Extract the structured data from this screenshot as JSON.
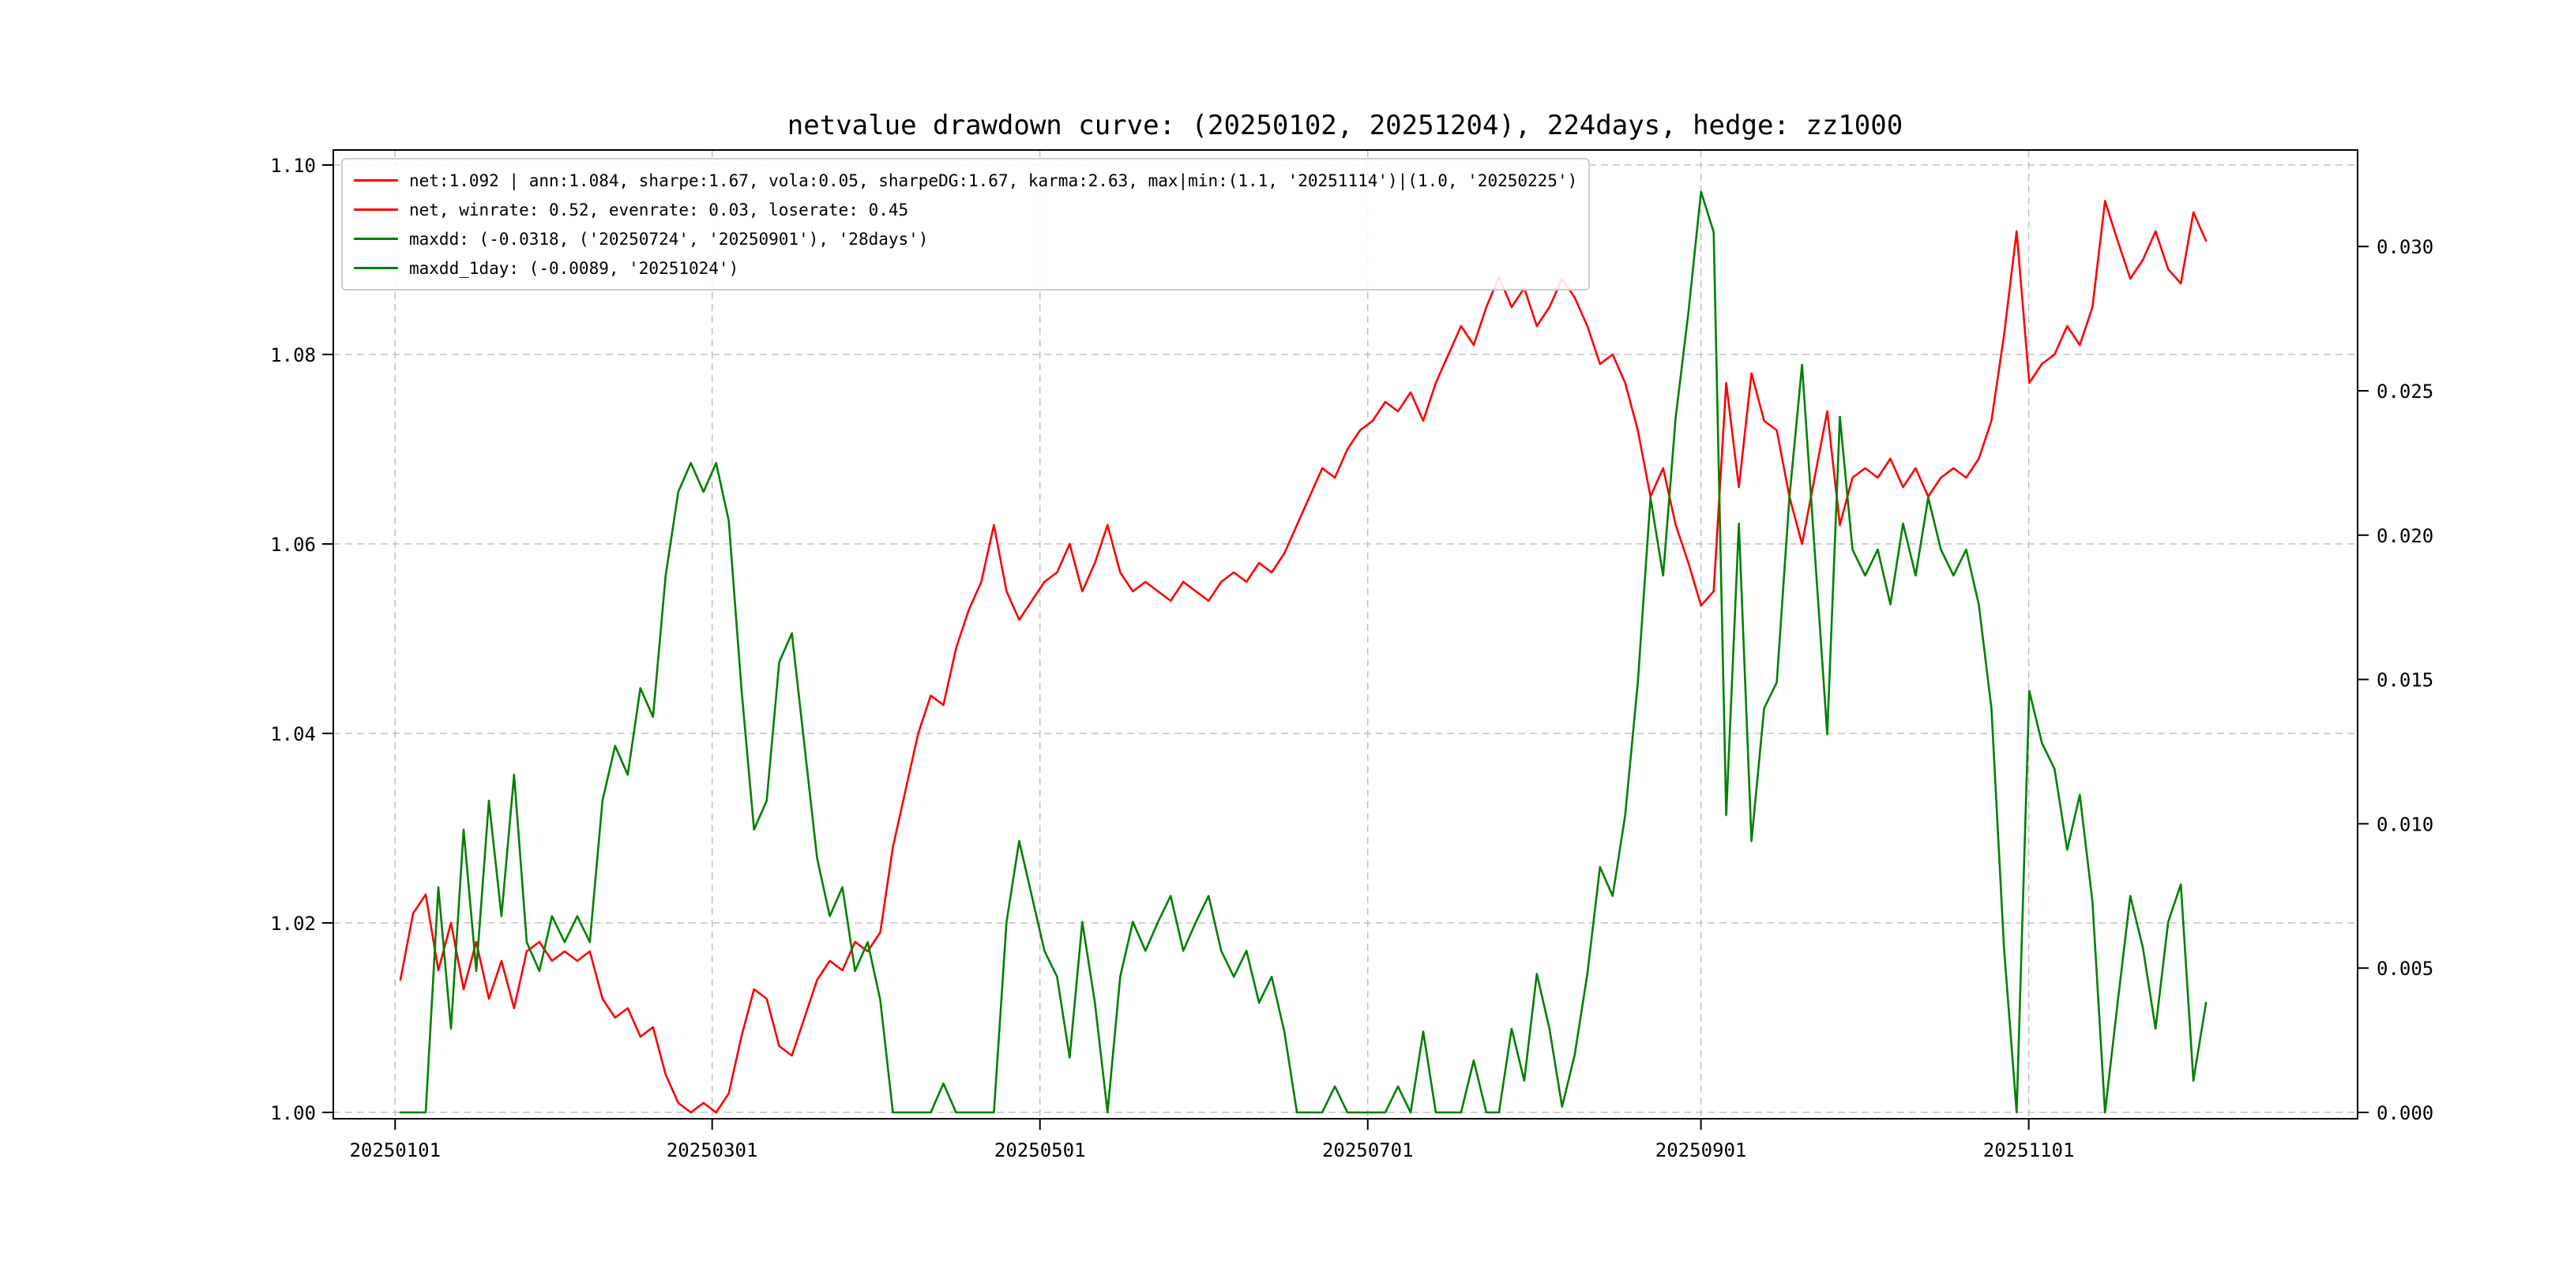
{
  "chart_data": {
    "type": "line",
    "title": "netvalue drawdown curve: (20250102, 20251204), 224days, hedge: zz1000",
    "hedge": "zz1000",
    "period_days": "224days",
    "x_axis": {
      "start_date": "20250102",
      "end_date": "20251204",
      "data_start_day": 1,
      "data_end_day": 337,
      "ticks": [
        {
          "day": 0,
          "label": "20250101"
        },
        {
          "day": 59,
          "label": "20250301"
        },
        {
          "day": 120,
          "label": "20250501"
        },
        {
          "day": 181,
          "label": "20250701"
        },
        {
          "day": 243,
          "label": "20250901"
        },
        {
          "day": 304,
          "label": "20251101"
        }
      ]
    },
    "y_left": {
      "min": 1.0,
      "max": 1.1,
      "ticks": [
        "1.00",
        "1.02",
        "1.04",
        "1.06",
        "1.08",
        "1.10"
      ]
    },
    "y_right": {
      "min": 0.0,
      "max": 0.03,
      "ticks": [
        "0.000",
        "0.005",
        "0.010",
        "0.015",
        "0.020",
        "0.025",
        "0.030"
      ]
    },
    "grid": {
      "dashed": true,
      "color": "#bdbdbd"
    },
    "legend_position": "upper left",
    "legend": [
      {
        "color": "#ff0000",
        "label": "net:1.092 | ann:1.084, sharpe:1.67, vola:0.05, sharpeDG:1.67, karma:2.63, max|min:(1.1, '20251114')|(1.0, '20250225')"
      },
      {
        "color": "#ff0000",
        "label": "net, winrate: 0.52, evenrate: 0.03, loserate: 0.45"
      },
      {
        "color": "#008000",
        "label": "maxdd: (-0.0318, ('20250724', '20250901'), '28days')"
      },
      {
        "color": "#008000",
        "label": "maxdd_1day: (-0.0089, '20251024')"
      }
    ],
    "series": [
      {
        "name": "net",
        "axis": "left",
        "color": "#ff0000",
        "values": [
          1.014,
          1.021,
          1.023,
          1.015,
          1.02,
          1.013,
          1.018,
          1.012,
          1.016,
          1.011,
          1.017,
          1.018,
          1.016,
          1.017,
          1.016,
          1.017,
          1.012,
          1.01,
          1.011,
          1.008,
          1.009,
          1.004,
          1.001,
          1.0,
          1.001,
          1.0,
          1.002,
          1.008,
          1.013,
          1.012,
          1.007,
          1.006,
          1.01,
          1.014,
          1.016,
          1.015,
          1.018,
          1.017,
          1.019,
          1.028,
          1.034,
          1.04,
          1.044,
          1.043,
          1.049,
          1.053,
          1.056,
          1.062,
          1.055,
          1.052,
          1.054,
          1.056,
          1.057,
          1.06,
          1.055,
          1.058,
          1.062,
          1.057,
          1.055,
          1.056,
          1.055,
          1.054,
          1.056,
          1.055,
          1.054,
          1.056,
          1.057,
          1.056,
          1.058,
          1.057,
          1.059,
          1.062,
          1.065,
          1.068,
          1.067,
          1.07,
          1.072,
          1.073,
          1.075,
          1.074,
          1.076,
          1.073,
          1.077,
          1.08,
          1.083,
          1.081,
          1.085,
          1.0882,
          1.085,
          1.087,
          1.083,
          1.085,
          1.088,
          1.086,
          1.083,
          1.079,
          1.08,
          1.077,
          1.072,
          1.065,
          1.068,
          1.062,
          1.058,
          1.0535,
          1.055,
          1.077,
          1.066,
          1.078,
          1.073,
          1.072,
          1.065,
          1.06,
          1.067,
          1.074,
          1.062,
          1.067,
          1.068,
          1.067,
          1.069,
          1.066,
          1.068,
          1.065,
          1.067,
          1.068,
          1.067,
          1.069,
          1.073,
          1.082,
          1.093,
          1.077,
          1.079,
          1.08,
          1.083,
          1.081,
          1.085,
          1.0962,
          1.092,
          1.088,
          1.09,
          1.093,
          1.089,
          1.0875,
          1.095,
          1.092
        ]
      },
      {
        "name": "drawdown",
        "axis": "right",
        "color": "#008000",
        "values": [
          0.0,
          0.0,
          0.0,
          0.0078,
          0.0029,
          0.0098,
          0.0049,
          0.0108,
          0.0068,
          0.0117,
          0.0059,
          0.0049,
          0.0068,
          0.0059,
          0.0068,
          0.0059,
          0.0108,
          0.0127,
          0.0117,
          0.0147,
          0.0137,
          0.0186,
          0.0215,
          0.0225,
          0.0215,
          0.0225,
          0.0205,
          0.0147,
          0.0098,
          0.0108,
          0.0156,
          0.0166,
          0.0127,
          0.0088,
          0.0068,
          0.0078,
          0.0049,
          0.0059,
          0.0039,
          0.0,
          0.0,
          0.0,
          0.0,
          0.001,
          0.0,
          0.0,
          0.0,
          0.0,
          0.0066,
          0.0094,
          0.0075,
          0.0056,
          0.0047,
          0.0019,
          0.0066,
          0.0038,
          0.0,
          0.0047,
          0.0066,
          0.0056,
          0.0066,
          0.0075,
          0.0056,
          0.0066,
          0.0075,
          0.0056,
          0.0047,
          0.0056,
          0.0038,
          0.0047,
          0.0028,
          0.0,
          0.0,
          0.0,
          0.0009,
          0.0,
          0.0,
          0.0,
          0.0,
          0.0009,
          0.0,
          0.0028,
          0.0,
          0.0,
          0.0,
          0.0018,
          0.0,
          0.0,
          0.0029,
          0.0011,
          0.0048,
          0.0029,
          0.0002,
          0.002,
          0.0048,
          0.0085,
          0.0075,
          0.0103,
          0.0149,
          0.0213,
          0.0186,
          0.0241,
          0.0277,
          0.0319,
          0.0305,
          0.0103,
          0.0204,
          0.0094,
          0.014,
          0.0149,
          0.0213,
          0.0259,
          0.0195,
          0.0131,
          0.0241,
          0.0195,
          0.0186,
          0.0195,
          0.0176,
          0.0204,
          0.0186,
          0.0213,
          0.0195,
          0.0186,
          0.0195,
          0.0176,
          0.014,
          0.0057,
          0.0,
          0.0146,
          0.0128,
          0.0119,
          0.0091,
          0.011,
          0.0073,
          0.0,
          0.0038,
          0.0075,
          0.0057,
          0.0029,
          0.0066,
          0.0079,
          0.0011,
          0.0038
        ]
      }
    ],
    "stats": {
      "net_final": 1.092,
      "ann": 1.084,
      "sharpe": 1.67,
      "vola": 0.05,
      "sharpeDG": 1.67,
      "karma": 2.63,
      "max": {
        "value": 1.1,
        "date": "20251114"
      },
      "min": {
        "value": 1.0,
        "date": "20250225"
      },
      "winrate": 0.52,
      "evenrate": 0.03,
      "loserate": 0.45,
      "maxdd": {
        "value": -0.0318,
        "from": "20250724",
        "to": "20250901",
        "duration": "28days"
      },
      "maxdd_1day": {
        "value": -0.0089,
        "date": "20251024"
      }
    }
  }
}
